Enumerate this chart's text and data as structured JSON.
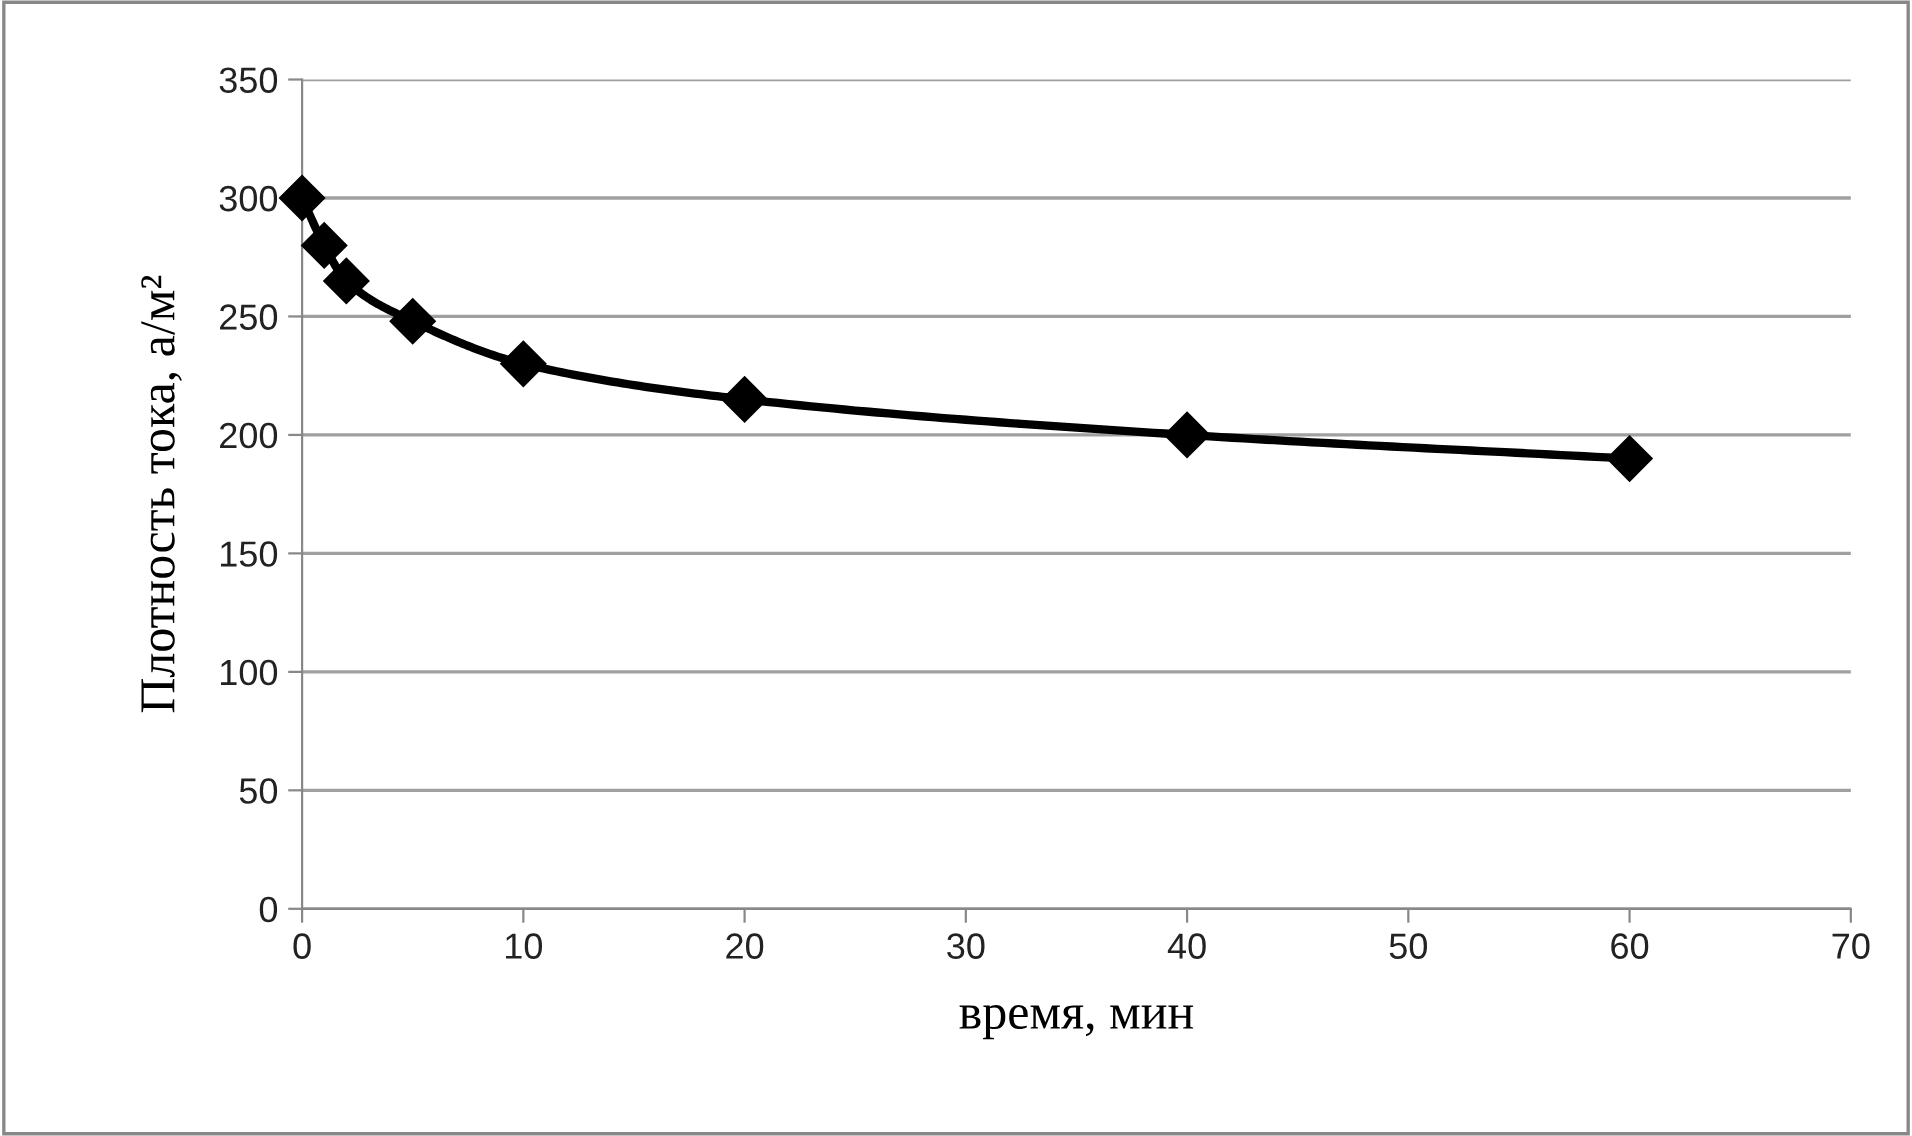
{
  "chart_data": {
    "type": "line",
    "xlabel": "время, мин",
    "ylabel": "Плотность тока, а/м²",
    "x": [
      0,
      1,
      2,
      5,
      10,
      20,
      40,
      60
    ],
    "series": [
      {
        "color": "#000000",
        "values": [
          300,
          280,
          265,
          248,
          230,
          215,
          200,
          190
        ]
      }
    ],
    "xlim": [
      0,
      70
    ],
    "xticks": [
      0,
      10,
      20,
      30,
      40,
      50,
      60,
      70
    ],
    "ylim": [
      0,
      350
    ],
    "yticks": [
      0,
      50,
      100,
      150,
      200,
      250,
      300,
      350
    ],
    "grid": "y",
    "marker": "diamond",
    "line_style": "solid"
  }
}
